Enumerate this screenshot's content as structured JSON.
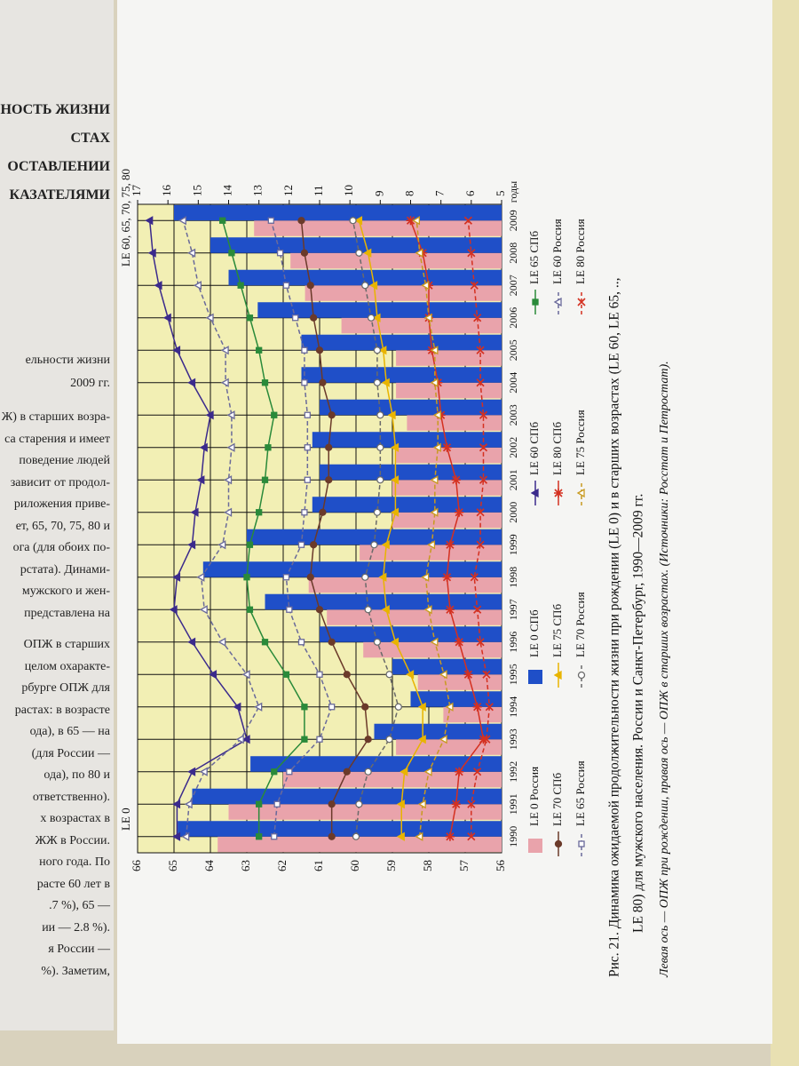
{
  "left_page": {
    "lines": [
      "ЬНОСТЬ ЖИЗНИ",
      "СТАХ",
      "ОСТАВЛЕНИИ",
      "КАЗАТЕЛЯМИ",
      "ельности жизни",
      "2009 гг.",
      "Ж) в старших возра-",
      "са старения и имеет",
      "поведение людей",
      "зависит от продол-",
      "риложения приве-",
      "ет, 65, 70, 75, 80 и",
      "ога (для обоих по-",
      "рстата). Динами-",
      "мужского и жен-",
      "представлена на",
      "ОПЖ в старших",
      "целом охаракте-",
      "рбурге ОПЖ для",
      "растах: в возрасте",
      "ода), в 65 — на",
      "(для России —",
      "ода), по 80 и",
      "ответственно).",
      "х возрастах в",
      "ЖЖ в России.",
      "ного года. По",
      "расте 60 лет в",
      ".7 %), 65 —",
      "ии — 2.8 %).",
      "я России —",
      "%). Заметим,"
    ]
  },
  "chart_data": {
    "type": "bar_line",
    "y_label": "LE 0",
    "y2_label": "LE 60, 65, 70, 75, 80",
    "x_unit": "годы",
    "caption": [
      "Рис. 21. Динамика ожидаемой продолжительности жизни при рождении (LE 0) и в старших возрастах (LE 60, LE 65, ..,",
      "LE 80) для мужского населения. России и Санкт-Петербург, 1990—2009 гг."
    ],
    "note": "Левая ось — ОПЖ при рождении, правая ось — ОПЖ в старших возрастах. (Источники: Росстат и Петростат).",
    "categories": [
      "1990",
      "1991",
      "1992",
      "1993",
      "1994",
      "1995",
      "1996",
      "1997",
      "1998",
      "1999",
      "2000",
      "2001",
      "2002",
      "2003",
      "2004",
      "2005",
      "2006",
      "2007",
      "2008",
      "2009"
    ],
    "ylim": [
      56,
      66
    ],
    "yticks": [
      56,
      57,
      58,
      59,
      60,
      61,
      62,
      63,
      64,
      65,
      66
    ],
    "y2lim": [
      5,
      17
    ],
    "y2ticks": [
      5,
      6,
      7,
      8,
      9,
      10,
      11,
      12,
      13,
      14,
      15,
      16,
      17
    ],
    "grid": true,
    "plot_background": "#f2efb4",
    "series": [
      {
        "name": "LE 0 Россия",
        "type": "bar",
        "color": "#e9a3ab",
        "values": [
          63.8,
          63.5,
          62.0,
          58.9,
          57.6,
          58.3,
          59.8,
          60.8,
          61.3,
          59.9,
          59.0,
          59.0,
          58.9,
          58.6,
          58.9,
          58.9,
          60.4,
          61.4,
          61.8,
          62.8
        ]
      },
      {
        "name": "LE 0 СПб",
        "type": "bar",
        "color": "#1f4fc8",
        "values": [
          64.9,
          64.5,
          62.9,
          59.5,
          58.5,
          59.0,
          61.0,
          62.5,
          64.2,
          63.0,
          61.2,
          61.0,
          61.2,
          61.0,
          61.5,
          61.5,
          62.7,
          63.5,
          64.0,
          65.0
        ]
      },
      {
        "name": "LE 60 СПб",
        "type": "line",
        "axis": "y2",
        "color": "#3b2a8c",
        "marker": "triangle",
        "filled": true,
        "dashed": false,
        "values": [
          15.7,
          15.7,
          15.2,
          13.4,
          13.7,
          14.5,
          15.2,
          15.8,
          15.7,
          15.2,
          15.1,
          14.9,
          14.8,
          14.6,
          15.2,
          15.7,
          16.0,
          16.3,
          16.5,
          16.6
        ]
      },
      {
        "name": "LE 65 СПб",
        "type": "line",
        "axis": "y2",
        "color": "#2a8a3a",
        "marker": "square",
        "filled": true,
        "dashed": false,
        "values": [
          13.0,
          13.0,
          12.5,
          11.5,
          11.5,
          12.1,
          12.8,
          13.3,
          13.4,
          13.3,
          13.0,
          12.8,
          12.7,
          12.5,
          12.8,
          13.0,
          13.3,
          13.6,
          13.9,
          14.2
        ]
      },
      {
        "name": "LE 70 СПб",
        "type": "line",
        "axis": "y2",
        "color": "#6b3a2a",
        "marker": "circle",
        "filled": true,
        "dashed": false,
        "values": [
          10.6,
          10.6,
          10.1,
          9.4,
          9.5,
          10.1,
          10.6,
          11.0,
          11.3,
          11.2,
          10.9,
          10.7,
          10.7,
          10.6,
          10.9,
          11.0,
          11.2,
          11.3,
          11.5,
          11.6
        ]
      },
      {
        "name": "LE 75 СПб",
        "type": "line",
        "axis": "y2",
        "color": "#e8b400",
        "marker": "triangle",
        "filled": true,
        "dashed": false,
        "values": [
          8.3,
          8.3,
          8.2,
          7.6,
          7.6,
          8.0,
          8.5,
          8.8,
          8.9,
          8.8,
          8.5,
          8.5,
          8.5,
          8.6,
          8.8,
          8.9,
          9.1,
          9.2,
          9.4,
          9.7
        ]
      },
      {
        "name": "LE 80 СПб",
        "type": "line",
        "axis": "y2",
        "color": "#d43020",
        "marker": "star",
        "filled": true,
        "dashed": false,
        "values": [
          6.7,
          6.5,
          6.4,
          5.6,
          5.8,
          6.1,
          6.4,
          6.7,
          6.8,
          6.7,
          6.4,
          6.5,
          6.8,
          7.0,
          7.1,
          7.3,
          7.4,
          7.4,
          7.6,
          8.0
        ]
      },
      {
        "name": "LE 60 Россия",
        "type": "line",
        "axis": "y2",
        "color": "#6a6a9a",
        "marker": "triangle",
        "filled": false,
        "dashed": true,
        "values": [
          15.4,
          15.3,
          14.8,
          13.6,
          13.0,
          13.4,
          14.2,
          14.8,
          14.9,
          14.2,
          14.0,
          14.0,
          13.9,
          13.9,
          14.1,
          14.1,
          14.6,
          15.0,
          15.2,
          15.5
        ]
      },
      {
        "name": "LE 65 Россия",
        "type": "line",
        "axis": "y2",
        "color": "#6a6a9a",
        "marker": "square",
        "filled": false,
        "dashed": true,
        "values": [
          12.5,
          12.4,
          12.0,
          11.0,
          10.6,
          11.0,
          11.6,
          12.0,
          12.1,
          11.6,
          11.5,
          11.4,
          11.4,
          11.4,
          11.5,
          11.5,
          11.8,
          12.1,
          12.3,
          12.6
        ]
      },
      {
        "name": "LE 70 Россия",
        "type": "line",
        "axis": "y2",
        "color": "#6a6a6a",
        "marker": "circle",
        "filled": false,
        "dashed": true,
        "values": [
          9.8,
          9.7,
          9.4,
          8.7,
          8.4,
          8.7,
          9.1,
          9.4,
          9.5,
          9.2,
          9.1,
          9.0,
          9.0,
          9.0,
          9.1,
          9.1,
          9.3,
          9.5,
          9.7,
          9.9
        ]
      },
      {
        "name": "LE 75 Россия",
        "type": "line",
        "axis": "y2",
        "color": "#c89a20",
        "marker": "triangle",
        "filled": false,
        "dashed": true,
        "values": [
          7.7,
          7.6,
          7.4,
          6.9,
          6.7,
          6.9,
          7.2,
          7.4,
          7.5,
          7.3,
          7.2,
          7.2,
          7.1,
          7.1,
          7.2,
          7.2,
          7.4,
          7.5,
          7.7,
          7.8
        ]
      },
      {
        "name": "LE 80 Россия",
        "type": "line",
        "axis": "y2",
        "color": "#d43020",
        "marker": "x",
        "filled": false,
        "dashed": true,
        "values": [
          6.0,
          6.0,
          5.8,
          5.5,
          5.4,
          5.5,
          5.7,
          5.8,
          5.9,
          5.7,
          5.7,
          5.6,
          5.6,
          5.6,
          5.7,
          5.7,
          5.8,
          5.9,
          6.0,
          6.1
        ]
      }
    ]
  }
}
